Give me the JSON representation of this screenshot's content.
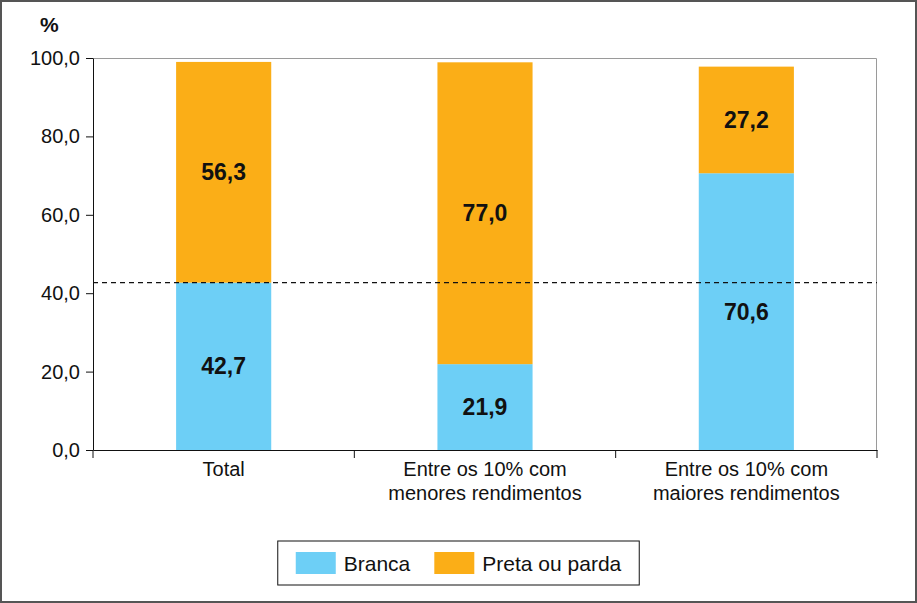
{
  "chart_data": {
    "type": "bar",
    "stacked": true,
    "y_label": "%",
    "categories": [
      "Total",
      "Entre os 10% com menores rendimentos",
      "Entre os 10% com maiores rendimentos"
    ],
    "series": [
      {
        "name": "Branca",
        "color": "#6dcff6",
        "values": [
          42.7,
          21.9,
          70.6
        ],
        "value_labels": [
          "42,7",
          "21,9",
          "70,6"
        ]
      },
      {
        "name": "Preta ou parda",
        "color": "#fbae17",
        "values": [
          56.3,
          77.0,
          27.2
        ],
        "value_labels": [
          "56,3",
          "77,0",
          "27,2"
        ]
      }
    ],
    "ylim": [
      0,
      100
    ],
    "yticks": [
      {
        "value": 0,
        "label": "0,0"
      },
      {
        "value": 20,
        "label": "20,0"
      },
      {
        "value": 40,
        "label": "40,0"
      },
      {
        "value": 60,
        "label": "60,0"
      },
      {
        "value": 80,
        "label": "80,0"
      },
      {
        "value": 100,
        "label": "100,0"
      }
    ],
    "data_labels": true,
    "legend": "bottom",
    "grid": false
  }
}
